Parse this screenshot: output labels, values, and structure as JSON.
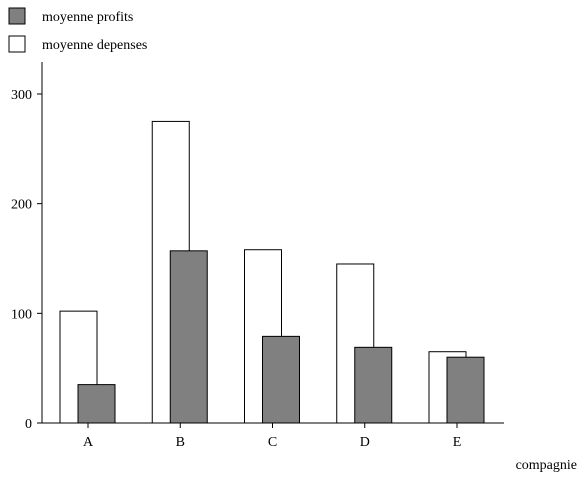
{
  "chart_data": {
    "type": "bar",
    "categories": [
      "A",
      "B",
      "C",
      "D",
      "E"
    ],
    "series": [
      {
        "name": "moyenne profits",
        "values": [
          35,
          157,
          79,
          69,
          60
        ],
        "color": "#808080"
      },
      {
        "name": "moyenne depenses",
        "values": [
          102,
          275,
          158,
          145,
          65
        ],
        "color": "#ffffff"
      }
    ],
    "xlabel": "compagnie",
    "ylabel": "",
    "ylim": [
      0,
      300
    ],
    "yticks": [
      0,
      100,
      200,
      300
    ],
    "grid": false,
    "legend_position": "top-left"
  }
}
